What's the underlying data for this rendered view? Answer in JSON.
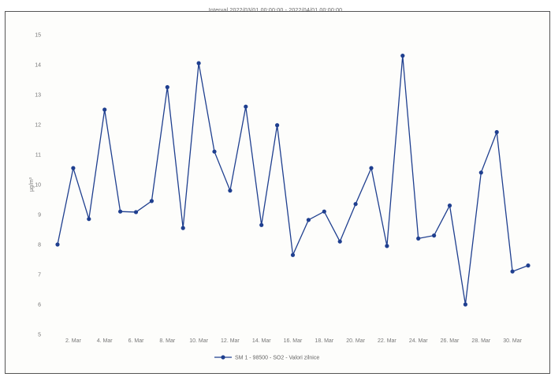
{
  "chart_data": {
    "type": "line",
    "title": "Interval 2022/03/01 00:00:00 - 2022/04/01 00:00:00",
    "xlabel": "",
    "ylabel": "µg/m³",
    "ylim": [
      5,
      15
    ],
    "yticks": [
      5,
      6,
      7,
      8,
      9,
      10,
      11,
      12,
      13,
      14,
      15
    ],
    "x": [
      1,
      2,
      3,
      4,
      5,
      6,
      7,
      8,
      9,
      10,
      11,
      12,
      13,
      14,
      15,
      16,
      17,
      18,
      19,
      20,
      21,
      22,
      23,
      24,
      25,
      26,
      27,
      28,
      29,
      30,
      31
    ],
    "xticks": [
      {
        "day": 2,
        "label": "2. Mar"
      },
      {
        "day": 4,
        "label": "4. Mar"
      },
      {
        "day": 6,
        "label": "6. Mar"
      },
      {
        "day": 8,
        "label": "8. Mar"
      },
      {
        "day": 10,
        "label": "10. Mar"
      },
      {
        "day": 12,
        "label": "12. Mar"
      },
      {
        "day": 14,
        "label": "14. Mar"
      },
      {
        "day": 16,
        "label": "16. Mar"
      },
      {
        "day": 18,
        "label": "18. Mar"
      },
      {
        "day": 20,
        "label": "20. Mar"
      },
      {
        "day": 22,
        "label": "22. Mar"
      },
      {
        "day": 24,
        "label": "24. Mar"
      },
      {
        "day": 26,
        "label": "26. Mar"
      },
      {
        "day": 28,
        "label": "28. Mar"
      },
      {
        "day": 30,
        "label": "30. Mar"
      }
    ],
    "series": [
      {
        "name": "SM 1 - 98500 - SO2 - Valori zilnice",
        "color": "#1f3f8f",
        "values": [
          8.0,
          10.55,
          8.85,
          12.5,
          9.1,
          9.08,
          9.45,
          13.25,
          8.55,
          14.05,
          11.1,
          9.8,
          12.6,
          8.65,
          11.98,
          7.65,
          8.82,
          9.1,
          8.1,
          9.35,
          10.55,
          7.95,
          14.3,
          8.2,
          8.3,
          9.3,
          6.0,
          10.4,
          11.75,
          7.1,
          7.3
        ]
      }
    ],
    "legend_position": "bottom-center",
    "grid": false
  }
}
